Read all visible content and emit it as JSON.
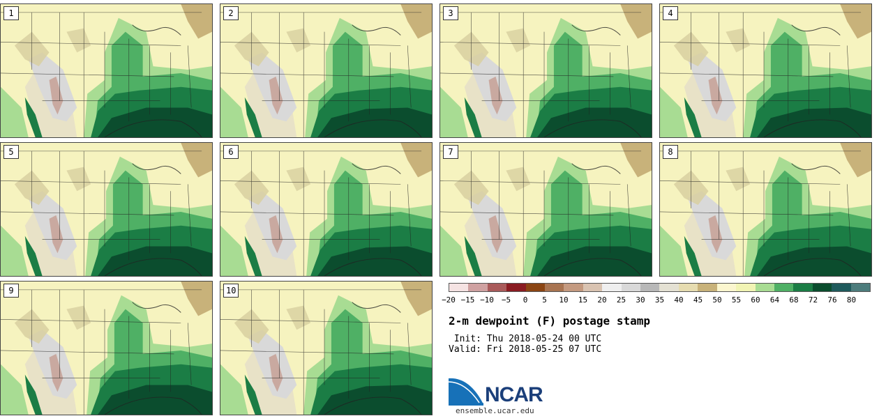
{
  "panels": [
    "1",
    "2",
    "3",
    "4",
    "5",
    "6",
    "7",
    "8",
    "9",
    "10"
  ],
  "colorbar": {
    "colors": [
      "#f5e3e3",
      "#cfa1a1",
      "#a95a5a",
      "#8a1c22",
      "#8b4513",
      "#a87451",
      "#c49a80",
      "#d9c3b1",
      "#efefef",
      "#d9d9d9",
      "#b8b8b8",
      "#e4e1d3",
      "#e6dcb0",
      "#c8b27a",
      "#fbf6cf",
      "#f1f4b4",
      "#a8dc93",
      "#4fb065",
      "#1b7d45",
      "#0b4d2e",
      "#1f5a5c",
      "#4d7c7c"
    ],
    "ticks": [
      "−20",
      "−15",
      "−10",
      "−5",
      "0",
      "5",
      "10",
      "15",
      "20",
      "25",
      "30",
      "35",
      "40",
      "45",
      "50",
      "55",
      "60",
      "64",
      "68",
      "72",
      "76",
      "80"
    ]
  },
  "title": "2-m dewpoint (F) postage stamp",
  "init": " Init: Thu 2018-05-24 00 UTC",
  "valid": "Valid: Fri 2018-05-25 07 UTC",
  "logo": {
    "word": "NCAR",
    "site": "ensemble.ucar.edu"
  }
}
